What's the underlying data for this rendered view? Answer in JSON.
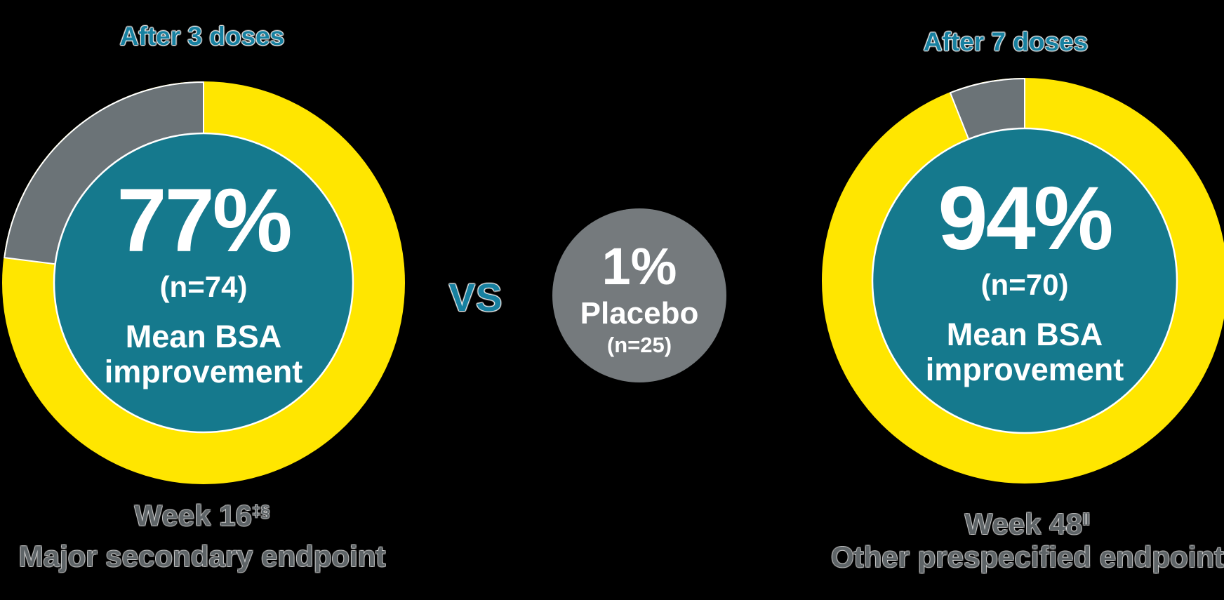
{
  "page": {
    "background": "#000000",
    "description": "Mean BSA improvement results infographic: treatment donut charts vs placebo"
  },
  "colors": {
    "teal_text": "#1780A0",
    "teal_fill": "#15798D",
    "yellow": "#FFE600",
    "gray_segment": "#6B7377",
    "gray_placebo": "#757A7D",
    "gray_caption": "#5E6467",
    "white": "#FFFFFF"
  },
  "left": {
    "header": "After 3 doses",
    "value": "77%",
    "n": "(n=74)",
    "metric_line1": "Mean BSA",
    "metric_line2": "improvement",
    "week": "Week 16",
    "week_sup": "‡§",
    "endpoint": "Major secondary endpoint"
  },
  "center": {
    "vs": "VS",
    "placebo_value": "1%",
    "placebo_label": "Placebo",
    "placebo_n": "(n=25)"
  },
  "right": {
    "header": "After 7 doses",
    "value": "94%",
    "n": "(n=70)",
    "metric_line1": "Mean BSA",
    "metric_line2": "improvement",
    "week": "Week 48",
    "week_sup": "‖",
    "endpoint": "Other prespecified endpoint"
  },
  "chart_data": [
    {
      "type": "donut",
      "title": "After 3 doses",
      "center_label": "77%",
      "n": 74,
      "metric": "Mean BSA improvement",
      "timepoint": "Week 16",
      "timepoint_footnote_symbols": "‡§",
      "endpoint": "Major secondary endpoint",
      "start_angle": "12 o'clock",
      "remainder_direction": "counterclockwise",
      "segments": [
        {
          "label": "Mean BSA improvement",
          "value_pct": 77,
          "color": "#FFE600"
        },
        {
          "label": "remainder",
          "value_pct": 23,
          "color": "#6B7377"
        }
      ]
    },
    {
      "type": "pie",
      "title": "Placebo",
      "center_label": "1%",
      "value_pct": 1,
      "n": 25,
      "color": "#757A7D"
    },
    {
      "type": "donut",
      "title": "After 7 doses",
      "center_label": "94%",
      "n": 70,
      "metric": "Mean BSA improvement",
      "timepoint": "Week 48",
      "timepoint_footnote_symbols": "‖",
      "endpoint": "Other prespecified endpoint",
      "start_angle": "12 o'clock",
      "remainder_direction": "counterclockwise",
      "segments": [
        {
          "label": "Mean BSA improvement",
          "value_pct": 94,
          "color": "#FFE600"
        },
        {
          "label": "remainder",
          "value_pct": 6,
          "color": "#6B7377"
        }
      ]
    }
  ]
}
